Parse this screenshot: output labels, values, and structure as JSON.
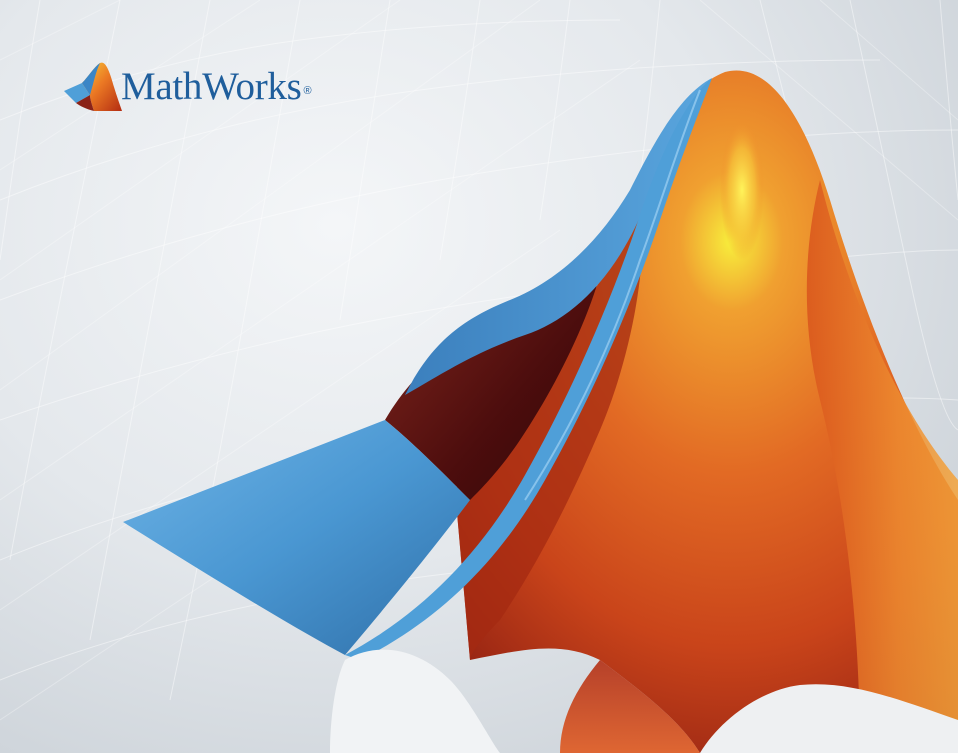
{
  "brand": {
    "name": "MathWorks",
    "registered_mark": "®"
  },
  "colors": {
    "brand_blue": "#1f5e9c",
    "surface_blue": "#4f9fd8",
    "surface_orange": "#e8742a",
    "surface_dark_red": "#5e1010",
    "highlight_yellow": "#f5e63a",
    "background": "#dfe4e8"
  },
  "icons": {
    "logo": "matlab-membrane-logo-icon"
  }
}
